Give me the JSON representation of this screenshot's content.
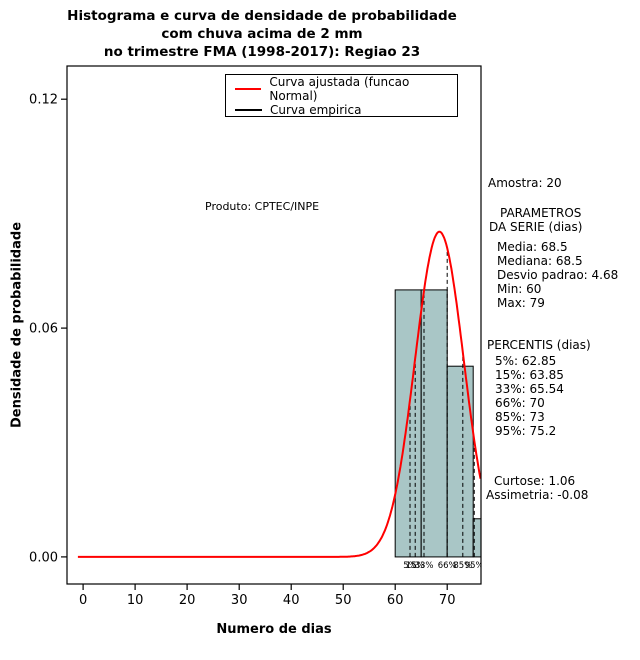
{
  "title": {
    "line1": "Histograma e curva de densidade de probabilidade",
    "line2": "com chuva acima de 2 mm",
    "line3": "no trimestre FMA (1998-2017): Regiao 23"
  },
  "legend": {
    "items": [
      {
        "label": "Curva ajustada (funcao Normal)",
        "color": "#ff0000"
      },
      {
        "label": "Curva empirica",
        "color": "#000000"
      }
    ]
  },
  "watermark": "Produto: CPTEC/INPE",
  "annotations": {
    "amostra": "Amostra: 20",
    "parametros_title1": "PARAMETROS",
    "parametros_title2": "DA SERIE (dias)",
    "parametros": [
      "Media: 68.5",
      "Mediana: 68.5",
      "Desvio padrao: 4.68",
      "Min: 60",
      "Max: 79"
    ],
    "percentis_title": "PERCENTIS (dias)",
    "percentis": [
      "5%: 62.85",
      "15%: 63.85",
      "33%: 65.54",
      "66%: 70",
      "85%: 73",
      "95%: 75.2"
    ],
    "curtose": "Curtose: 1.06",
    "assimetria": "Assimetria: -0.08"
  },
  "chart_data": {
    "type": "bar",
    "subtype": "histogram-with-fitted-density",
    "title": "Histograma e curva de densidade de probabilidade com chuva acima de 2 mm no trimestre FMA (1998-2017): Regiao 23",
    "xlabel": "Numero de dias",
    "ylabel": "Densidade de probabilidade",
    "xlim": [
      -3.1,
      76.5
    ],
    "ylim": [
      -0.0071,
      0.1287
    ],
    "x_ticks": [
      0,
      10,
      20,
      30,
      40,
      50,
      60,
      70
    ],
    "y_ticks": [
      0,
      0.06,
      0.12
    ],
    "y_tick_labels": [
      "0.00",
      "0.06",
      "0.12"
    ],
    "histogram": {
      "breaks": [
        60,
        65,
        70,
        75,
        80
      ],
      "densities": [
        0.07,
        0.07,
        0.05,
        0.01
      ],
      "counts": [
        7,
        7,
        5,
        1
      ],
      "bar_fill": "#a9c6c6",
      "bar_stroke": "#000000"
    },
    "fitted_normal": {
      "mean": 68.5,
      "sd": 4.68,
      "color": "#ff0000"
    },
    "sample_size": 20,
    "stats": {
      "media": 68.5,
      "mediana": 68.5,
      "desvio_padrao": 4.68,
      "min": 60,
      "max": 79,
      "curtose": 1.06,
      "assimetria": -0.08
    },
    "percentile_lines": [
      {
        "label": "5%",
        "x": 62.85
      },
      {
        "label": "15%",
        "x": 63.85
      },
      {
        "label": "33%",
        "x": 65.54
      },
      {
        "label": "66%",
        "x": 70
      },
      {
        "label": "85%",
        "x": 73
      },
      {
        "label": "95%",
        "x": 75.2
      }
    ],
    "grid": false,
    "legend_position": "top-center-inside"
  }
}
